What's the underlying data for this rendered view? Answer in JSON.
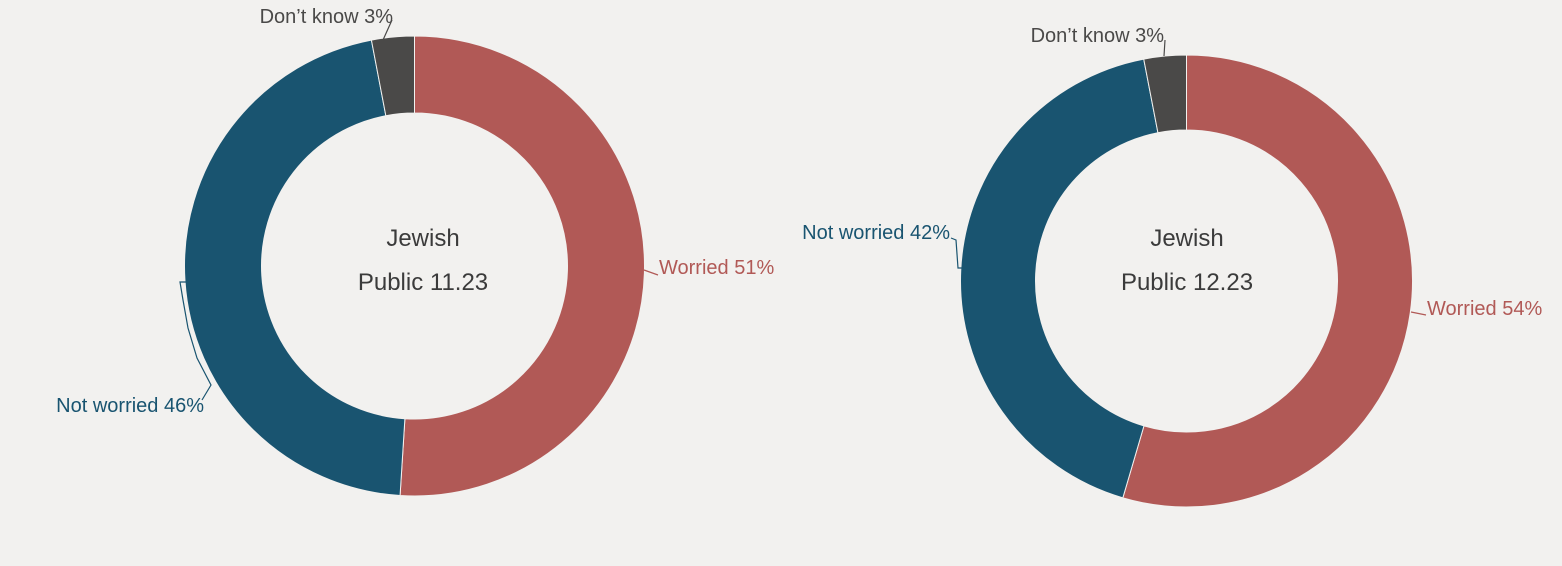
{
  "chart_data": [
    {
      "type": "pie",
      "center_label": [
        "Jewish",
        "Public 11.23"
      ],
      "slices": [
        {
          "label": "Worried",
          "value": 51,
          "display": "Worried 51%"
        },
        {
          "label": "Not worried",
          "value": 46,
          "display": "Not worried 46%"
        },
        {
          "label": "Don’t know",
          "value": 3,
          "display": "Don’t know 3%"
        }
      ]
    },
    {
      "type": "pie",
      "center_label": [
        "Jewish",
        "Public 12.23"
      ],
      "slices": [
        {
          "label": "Worried",
          "value": 54,
          "display": "Worried 54%"
        },
        {
          "label": "Not worried",
          "value": 42,
          "display": "Not worried 42%"
        },
        {
          "label": "Don’t know",
          "value": 3,
          "display": "Don’t know 3%"
        }
      ]
    }
  ],
  "colors": {
    "worried": "#b15956",
    "not_worried": "#195470",
    "dont_know": "#4a4948",
    "center_text": "#3b3b3b",
    "background": "#f2f1ef"
  }
}
